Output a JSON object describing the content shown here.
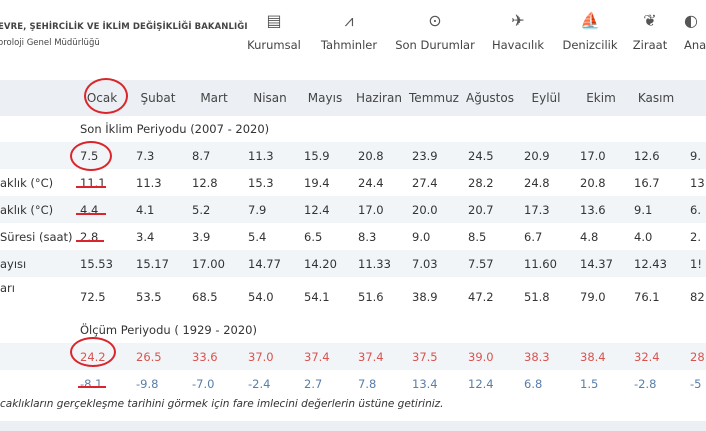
{
  "header": {
    "org_line1": "EVRE, ŞEHİRCİLİK VE İKLİM DEĞİŞİKLİĞİ BAKANLIĞI",
    "org_line2": "oroloji Genel Müdürlüğü",
    "nav": [
      {
        "label": "Kurumsal",
        "icon": "document-icon",
        "glyph": "▤"
      },
      {
        "label": "Tahminler",
        "icon": "chart-icon",
        "glyph": "⩘"
      },
      {
        "label": "Son Durumlar",
        "icon": "chevron-circle-icon",
        "glyph": "⊙"
      },
      {
        "label": "Havacılık",
        "icon": "airplane-icon",
        "glyph": "✈"
      },
      {
        "label": "Denizcilik",
        "icon": "sailboat-icon",
        "glyph": "⛵"
      },
      {
        "label": "Ziraat",
        "icon": "wheat-icon",
        "glyph": "❦"
      },
      {
        "label": "Ana",
        "icon": "more-icon",
        "glyph": "◐"
      }
    ]
  },
  "table": {
    "months": [
      "Ocak",
      "Şubat",
      "Mart",
      "Nisan",
      "Mayıs",
      "Haziran",
      "Temmuz",
      "Ağustos",
      "Eylül",
      "Ekim",
      "Kasım"
    ],
    "section1": "Son İklim Periyodu (2007 - 2020)",
    "section2": "Ölçüm Periyodu ( 1929 - 2020)",
    "rows1": [
      {
        "label": "",
        "values": [
          "7.5",
          "7.3",
          "8.7",
          "11.3",
          "15.9",
          "20.8",
          "23.9",
          "24.5",
          "20.9",
          "17.0",
          "12.6"
        ],
        "extra": "9."
      },
      {
        "label": "aklık (°C)",
        "values": [
          "11.1",
          "11.3",
          "12.8",
          "15.3",
          "19.4",
          "24.4",
          "27.4",
          "28.2",
          "24.8",
          "20.8",
          "16.7"
        ],
        "extra": "13"
      },
      {
        "label": "aklık (°C)",
        "values": [
          "4.4",
          "4.1",
          "5.2",
          "7.9",
          "12.4",
          "17.0",
          "20.0",
          "20.7",
          "17.3",
          "13.6",
          "9.1"
        ],
        "extra": "6."
      },
      {
        "label": "Süresi (saat)",
        "values": [
          "2.8",
          "3.4",
          "3.9",
          "5.4",
          "6.5",
          "8.3",
          "9.0",
          "8.5",
          "6.7",
          "4.8",
          "4.0"
        ],
        "extra": "2."
      },
      {
        "label": "ayısı",
        "values": [
          "15.53",
          "15.17",
          "17.00",
          "14.77",
          "14.20",
          "11.33",
          "7.03",
          "7.57",
          "11.60",
          "14.37",
          "12.43"
        ],
        "extra": "1!"
      },
      {
        "label": "arı",
        "values": [
          "72.5",
          "53.5",
          "68.5",
          "54.0",
          "54.1",
          "51.6",
          "38.9",
          "47.2",
          "51.8",
          "79.0",
          "76.1"
        ],
        "extra": "82"
      }
    ],
    "rows2": [
      {
        "label": "",
        "values": [
          "24.2",
          "26.5",
          "33.6",
          "37.0",
          "37.4",
          "37.4",
          "37.5",
          "39.0",
          "38.3",
          "38.4",
          "32.4"
        ],
        "extra": "28"
      },
      {
        "label": "",
        "values": [
          "-8.1",
          "-9.8",
          "-7.0",
          "-2.4",
          "2.7",
          "7.8",
          "13.4",
          "12.4",
          "6.8",
          "1.5",
          "-2.8"
        ],
        "extra": "-5"
      }
    ]
  },
  "note": "caklıkların gerçekleşme tarihini görmek için fare imlecini değerlerin üstüne getiriniz.",
  "colors": {
    "annotation": "#d9252b",
    "hot": "#d9534f",
    "cold": "#5a7ea8",
    "header_bg": "#ecf0f4"
  }
}
